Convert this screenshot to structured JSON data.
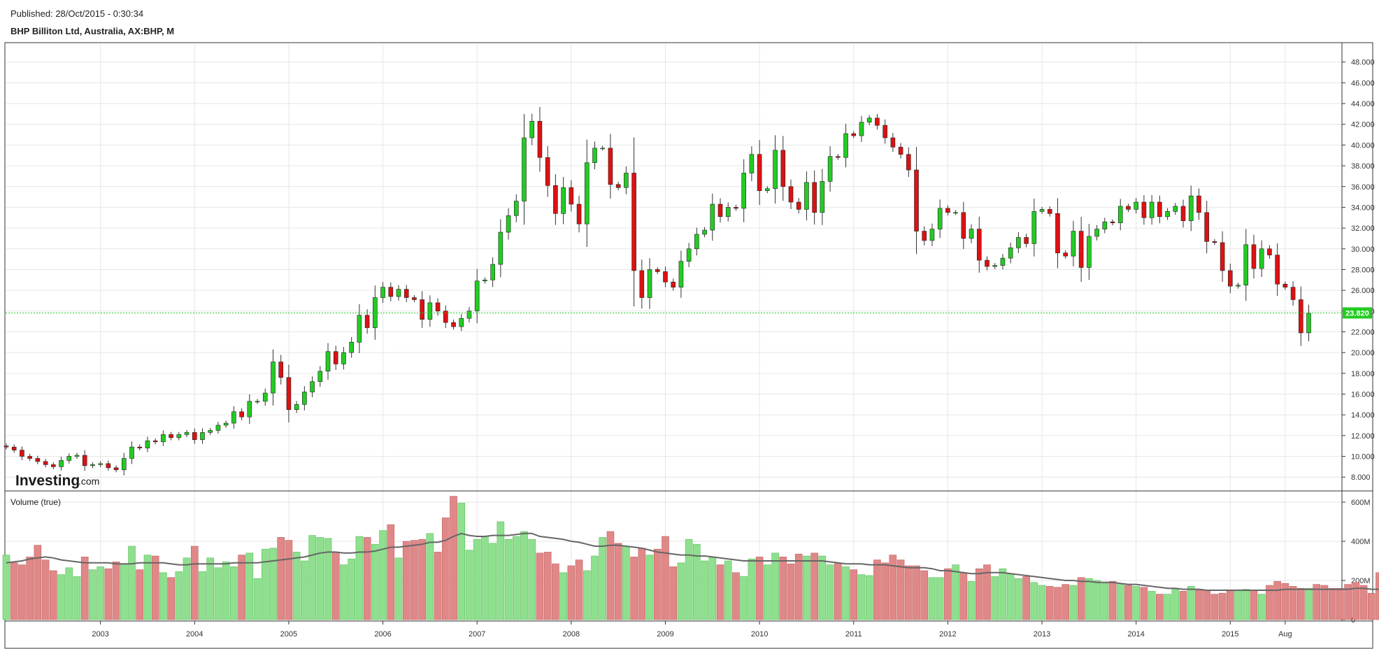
{
  "header": {
    "published": "Published: 28/Oct/2015 - 0:30:34",
    "title": "BHP Billiton Ltd, Australia, AX:BHP, M"
  },
  "logo": {
    "main": "Investing",
    "suffix": ".com"
  },
  "volume_panel": {
    "title": "Volume (true)"
  },
  "colors": {
    "up": "#22cc22",
    "down": "#dd1111",
    "vol_up": "#8ee08e",
    "vol_down": "#e08888",
    "ma": "#666666",
    "last_price": "#22cc22"
  },
  "chart_data": {
    "type": "candlestick",
    "title": "BHP Billiton Ltd, Australia, AX:BHP, M",
    "interval": "monthly",
    "first_period": "2002-01",
    "price_axis": {
      "ticks": [
        "8.000",
        "10.000",
        "12.000",
        "14.000",
        "16.000",
        "18.000",
        "20.000",
        "22.000",
        "24.000",
        "26.000",
        "28.000",
        "30.000",
        "32.000",
        "34.000",
        "36.000",
        "38.000",
        "40.000",
        "42.000",
        "44.000",
        "46.000",
        "48.000"
      ],
      "range": [
        6.8,
        49.8
      ]
    },
    "last_price": "23.820",
    "x_axis_labels": [
      {
        "label": "2003",
        "period": "2003-01"
      },
      {
        "label": "2004",
        "period": "2004-01"
      },
      {
        "label": "2005",
        "period": "2005-01"
      },
      {
        "label": "2006",
        "period": "2006-01"
      },
      {
        "label": "2007",
        "period": "2007-01"
      },
      {
        "label": "2008",
        "period": "2008-01"
      },
      {
        "label": "2009",
        "period": "2009-01"
      },
      {
        "label": "2010",
        "period": "2010-01"
      },
      {
        "label": "2011",
        "period": "2011-01"
      },
      {
        "label": "2012",
        "period": "2012-01"
      },
      {
        "label": "2013",
        "period": "2013-01"
      },
      {
        "label": "2014",
        "period": "2014-01"
      },
      {
        "label": "2015",
        "period": "2015-01"
      },
      {
        "label": "Aug",
        "period": "2015-08"
      }
    ],
    "closes": [
      10.9,
      10.6,
      10.0,
      9.8,
      9.5,
      9.2,
      9.0,
      9.6,
      10.0,
      10.1,
      9.1,
      9.2,
      9.3,
      8.9,
      8.7,
      9.8,
      10.9,
      10.8,
      11.5,
      11.4,
      12.1,
      11.8,
      12.1,
      12.3,
      11.6,
      12.3,
      12.5,
      13.0,
      13.2,
      14.3,
      13.8,
      15.3,
      15.3,
      16.1,
      19.1,
      17.6,
      14.5,
      15.0,
      16.2,
      17.2,
      18.2,
      20.1,
      18.9,
      20.0,
      21.0,
      23.6,
      22.4,
      25.3,
      26.3,
      25.4,
      26.1,
      25.3,
      25.1,
      23.2,
      24.8,
      24.0,
      22.9,
      22.5,
      23.3,
      24.0,
      26.9,
      27.0,
      28.5,
      31.6,
      33.2,
      34.6,
      40.7,
      42.3,
      38.8,
      36.1,
      33.4,
      35.9,
      34.3,
      32.4,
      38.3,
      39.7,
      39.7,
      36.2,
      35.9,
      37.3,
      27.9,
      25.3,
      28.0,
      27.8,
      26.8,
      26.3,
      28.8,
      30.0,
      31.4,
      31.8,
      34.3,
      33.1,
      34.0,
      33.9,
      37.3,
      39.1,
      35.6,
      35.8,
      39.5,
      36.0,
      34.5,
      33.8,
      36.4,
      33.5,
      36.5,
      38.9,
      38.8,
      41.1,
      40.9,
      42.2,
      42.6,
      41.9,
      40.7,
      39.8,
      39.1,
      37.6,
      31.7,
      30.8,
      31.9,
      33.9,
      33.5,
      33.5,
      31.0,
      31.9,
      28.9,
      28.3,
      28.4,
      29.1,
      30.1,
      31.1,
      30.5,
      33.6,
      33.8,
      33.4,
      29.6,
      29.3,
      31.7,
      28.2,
      31.2,
      31.9,
      32.6,
      32.5,
      34.1,
      33.8,
      34.5,
      33.0,
      34.5,
      33.1,
      33.6,
      34.1,
      32.7,
      35.1,
      33.5,
      30.7,
      30.6,
      27.9,
      26.4,
      26.5,
      30.4,
      28.1,
      30.0,
      29.4,
      26.6,
      26.3,
      25.1,
      21.9,
      23.8
    ],
    "volume_axis": {
      "ticks": [
        "0",
        "200M",
        "400M",
        "600M"
      ],
      "range": [
        0,
        650
      ]
    },
    "volume_unit": "M",
    "volumes": [
      330,
      290,
      280,
      320,
      380,
      305,
      250,
      230,
      265,
      220,
      320,
      255,
      270,
      260,
      295,
      280,
      375,
      255,
      330,
      325,
      240,
      215,
      245,
      315,
      375,
      245,
      315,
      265,
      295,
      270,
      330,
      340,
      210,
      360,
      365,
      420,
      405,
      345,
      300,
      430,
      420,
      415,
      345,
      280,
      310,
      425,
      420,
      385,
      455,
      485,
      315,
      400,
      405,
      410,
      440,
      345,
      520,
      630,
      595,
      355,
      410,
      425,
      390,
      500,
      410,
      425,
      450,
      410,
      340,
      345,
      285,
      240,
      275,
      305,
      250,
      325,
      420,
      450,
      390,
      375,
      320,
      365,
      330,
      360,
      425,
      270,
      290,
      410,
      385,
      300,
      320,
      280,
      300,
      240,
      220,
      310,
      320,
      280,
      340,
      320,
      285,
      335,
      325,
      340,
      325,
      280,
      290,
      270,
      255,
      230,
      225,
      305,
      290,
      330,
      305,
      275,
      275,
      250,
      215,
      215,
      260,
      280,
      240,
      195,
      260,
      280,
      220,
      260,
      235,
      210,
      220,
      190,
      175,
      170,
      165,
      180,
      175,
      215,
      210,
      200,
      185,
      195,
      185,
      175,
      170,
      165,
      145,
      130,
      130,
      155,
      145,
      170,
      150,
      150,
      130,
      135,
      150,
      150,
      155,
      150,
      130,
      175,
      195,
      185,
      170,
      160,
      160,
      180,
      175,
      160,
      160,
      180,
      190,
      175,
      135,
      240
    ],
    "volume_ma": [
      290,
      295,
      300,
      310,
      315,
      320,
      315,
      305,
      300,
      295,
      290,
      290,
      290,
      290,
      285,
      285,
      285,
      290,
      290,
      290,
      290,
      285,
      280,
      280,
      285,
      285,
      285,
      285,
      285,
      290,
      290,
      290,
      290,
      295,
      300,
      305,
      310,
      315,
      320,
      330,
      340,
      345,
      345,
      340,
      340,
      345,
      345,
      350,
      360,
      370,
      370,
      375,
      380,
      385,
      395,
      395,
      405,
      425,
      440,
      430,
      425,
      425,
      430,
      430,
      430,
      435,
      440,
      440,
      425,
      420,
      415,
      410,
      400,
      395,
      385,
      375,
      375,
      380,
      380,
      375,
      370,
      365,
      355,
      345,
      340,
      335,
      330,
      330,
      325,
      325,
      320,
      315,
      310,
      305,
      300,
      300,
      300,
      300,
      300,
      300,
      300,
      300,
      300,
      300,
      300,
      295,
      290,
      285,
      285,
      285,
      280,
      280,
      280,
      275,
      270,
      265,
      265,
      265,
      260,
      250,
      250,
      245,
      240,
      235,
      235,
      240,
      240,
      240,
      235,
      230,
      225,
      220,
      215,
      210,
      205,
      200,
      200,
      195,
      195,
      190,
      190,
      190,
      185,
      180,
      180,
      175,
      170,
      165,
      160,
      160,
      155,
      155,
      155,
      150,
      150,
      150,
      150,
      150,
      150,
      150,
      150,
      150,
      150,
      155,
      155,
      155,
      155,
      155,
      155,
      155,
      155,
      155,
      160,
      160,
      155,
      155
    ]
  }
}
